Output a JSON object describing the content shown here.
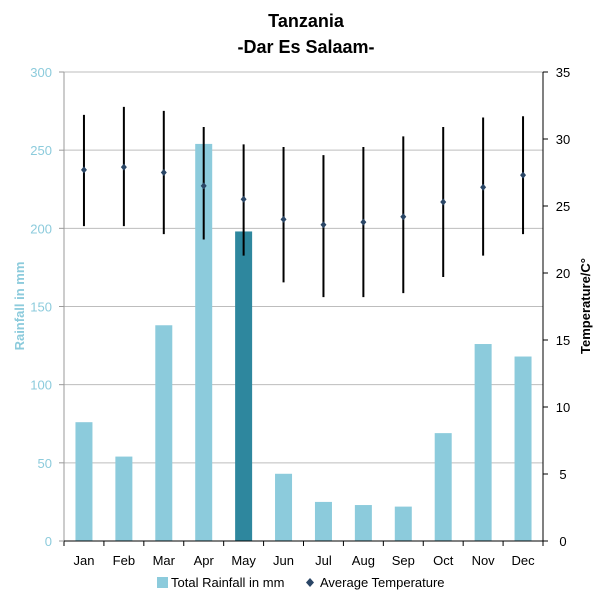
{
  "chart_data": {
    "type": "bar",
    "title": "Tanzania",
    "subtitle": "-Dar Es Salaam-",
    "categories": [
      "Jan",
      "Feb",
      "Mar",
      "Apr",
      "May",
      "Jun",
      "Jul",
      "Aug",
      "Sep",
      "Oct",
      "Nov",
      "Dec"
    ],
    "series": [
      {
        "name": "Total Rainfall in mm",
        "kind": "bar",
        "axis": "left",
        "color": "#8ccbdc",
        "highlight_color": "#2e879e",
        "highlight_index": 4,
        "values": [
          76,
          54,
          138,
          254,
          198,
          43,
          25,
          23,
          22,
          69,
          126,
          118
        ]
      },
      {
        "name": "Average Temperature",
        "kind": "point-range",
        "axis": "right",
        "color": "#2a4666",
        "values": [
          27.7,
          27.9,
          27.5,
          26.5,
          25.5,
          24.0,
          23.6,
          23.8,
          24.2,
          25.3,
          26.4,
          27.3
        ],
        "low": [
          23.5,
          23.5,
          22.9,
          22.5,
          21.3,
          19.3,
          18.2,
          18.2,
          18.5,
          19.7,
          21.3,
          22.9
        ],
        "high": [
          31.8,
          32.4,
          32.1,
          30.9,
          29.6,
          29.4,
          28.8,
          29.4,
          30.2,
          30.9,
          31.6,
          31.7
        ]
      }
    ],
    "ylabel": "Rainfall in mm",
    "ylim": [
      0,
      300
    ],
    "yticks": [
      "0",
      "50",
      "100",
      "150",
      "200",
      "250",
      "300"
    ],
    "y2label": "Temperature/C°",
    "y2lim": [
      0,
      35
    ],
    "y2ticks": [
      "0",
      "5",
      "10",
      "15",
      "20",
      "25",
      "30",
      "35"
    ],
    "grid": true,
    "legend": "bottom"
  }
}
